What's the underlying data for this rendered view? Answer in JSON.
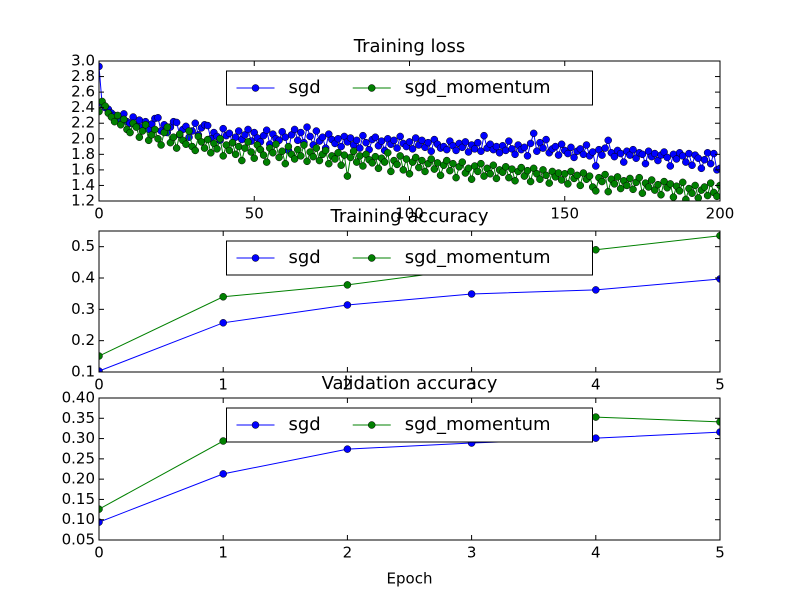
{
  "chart_data": [
    {
      "type": "line",
      "title": "Training loss",
      "legend": "upper center",
      "x": [
        0,
        1,
        2,
        3,
        4,
        5,
        6,
        7,
        8,
        9,
        10,
        11,
        12,
        13,
        14,
        15,
        16,
        17,
        18,
        19,
        20,
        21,
        22,
        23,
        24,
        25,
        26,
        27,
        28,
        29,
        30,
        31,
        32,
        33,
        34,
        35,
        36,
        37,
        38,
        39,
        40,
        41,
        42,
        43,
        44,
        45,
        46,
        47,
        48,
        49,
        50,
        51,
        52,
        53,
        54,
        55,
        56,
        57,
        58,
        59,
        60,
        61,
        62,
        63,
        64,
        65,
        66,
        67,
        68,
        69,
        70,
        71,
        72,
        73,
        74,
        75,
        76,
        77,
        78,
        79,
        80,
        81,
        82,
        83,
        84,
        85,
        86,
        87,
        88,
        89,
        90,
        91,
        92,
        93,
        94,
        95,
        96,
        97,
        98,
        99,
        100,
        101,
        102,
        103,
        104,
        105,
        106,
        107,
        108,
        109,
        110,
        111,
        112,
        113,
        114,
        115,
        116,
        117,
        118,
        119,
        120,
        121,
        122,
        123,
        124,
        125,
        126,
        127,
        128,
        129,
        130,
        131,
        132,
        133,
        134,
        135,
        136,
        137,
        138,
        139,
        140,
        141,
        142,
        143,
        144,
        145,
        146,
        147,
        148,
        149,
        150,
        151,
        152,
        153,
        154,
        155,
        156,
        157,
        158,
        159,
        160,
        161,
        162,
        163,
        164,
        165,
        166,
        167,
        168,
        169,
        170,
        171,
        172,
        173,
        174,
        175,
        176,
        177,
        178,
        179,
        180,
        181,
        182,
        183,
        184,
        185,
        186,
        187,
        188,
        189,
        190,
        191,
        192,
        193,
        194,
        195,
        196,
        197,
        198,
        199,
        200
      ],
      "series": [
        {
          "name": "sgd",
          "color": "#0000ff",
          "values": [
            2.93,
            2.45,
            2.4,
            2.38,
            2.33,
            2.3,
            2.28,
            2.25,
            2.32,
            2.22,
            2.2,
            2.28,
            2.18,
            2.24,
            2.15,
            2.22,
            2.12,
            2.19,
            2.26,
            2.27,
            2.1,
            2.18,
            2.08,
            2.15,
            2.22,
            2.21,
            2.05,
            2.12,
            2.16,
            2.02,
            2.1,
            2.2,
            2.05,
            2.14,
            2.18,
            2.17,
            2.0,
            2.08,
            2.03,
            1.98,
            2.13,
            2.04,
            2.07,
            1.95,
            2.02,
            2.1,
            1.99,
            2.05,
            2.12,
            1.97,
            2.08,
            2.01,
            1.96,
            2.04,
            2.11,
            1.93,
            2.06,
            2.0,
            1.98,
            2.09,
            2.02,
            1.85,
            2.05,
            2.12,
            1.98,
            2.08,
            1.95,
            2.15,
            2.03,
            1.92,
            2.1,
            1.97,
            2.02,
            1.88,
            2.06,
            1.99,
            1.94,
            2.0,
            1.9,
            2.03,
            1.96,
            2.01,
            1.92,
            1.98,
            1.88,
            2.04,
            1.95,
            1.86,
            1.99,
            2.02,
            1.91,
            1.97,
            1.85,
            2.0,
            1.93,
            1.98,
            1.88,
            2.03,
            1.94,
            1.9,
            1.96,
            1.87,
            2.01,
            1.92,
            1.98,
            1.89,
            1.95,
            1.84,
            1.99,
            1.93,
            1.88,
            1.9,
            1.86,
            1.97,
            1.91,
            1.85,
            1.94,
            1.89,
            1.96,
            1.83,
            1.92,
            1.87,
            1.95,
            1.84,
            2.04,
            1.88,
            1.93,
            1.86,
            1.9,
            1.82,
            1.91,
            1.85,
            1.97,
            1.87,
            1.8,
            1.92,
            1.86,
            1.89,
            1.78,
            1.94,
            2.07,
            1.84,
            1.95,
            1.88,
            1.99,
            1.82,
            1.87,
            1.9,
            1.79,
            1.93,
            1.85,
            1.81,
            1.89,
            1.76,
            1.84,
            1.87,
            1.8,
            1.92,
            1.78,
            1.83,
            1.65,
            1.86,
            1.79,
            1.88,
            1.98,
            1.82,
            1.77,
            1.85,
            1.81,
            1.7,
            1.84,
            1.79,
            1.86,
            1.75,
            1.82,
            1.8,
            1.68,
            1.84,
            1.77,
            1.81,
            1.72,
            1.79,
            1.83,
            1.76,
            1.65,
            1.8,
            1.74,
            1.82,
            1.78,
            1.7,
            1.81,
            1.66,
            1.79,
            1.75,
            1.62,
            1.73,
            1.82,
            1.68,
            1.81,
            1.6,
            1.62
          ]
        },
        {
          "name": "sgd_momentum",
          "color": "#008000",
          "values": [
            2.35,
            2.48,
            2.42,
            2.33,
            2.28,
            2.22,
            2.3,
            2.18,
            2.25,
            2.12,
            2.08,
            2.2,
            2.15,
            2.02,
            2.1,
            2.18,
            1.98,
            2.05,
            2.12,
            2.0,
            1.92,
            2.08,
            2.15,
            1.95,
            2.02,
            1.88,
            2.06,
            1.98,
            1.93,
            2.1,
            1.9,
            1.85,
            2.03,
            1.96,
            1.88,
            1.99,
            1.82,
            1.94,
            1.87,
            2.0,
            1.78,
            1.92,
            1.85,
            1.95,
            1.8,
            1.9,
            1.72,
            1.88,
            1.96,
            1.83,
            1.75,
            1.92,
            1.86,
            1.79,
            1.7,
            1.88,
            1.82,
            1.93,
            1.76,
            1.84,
            1.68,
            1.9,
            1.8,
            1.74,
            1.86,
            1.78,
            1.92,
            1.71,
            1.83,
            1.77,
            1.88,
            1.72,
            1.8,
            1.85,
            1.68,
            1.78,
            1.74,
            1.82,
            1.66,
            1.79,
            1.52,
            1.76,
            1.84,
            1.7,
            1.78,
            1.65,
            1.8,
            1.73,
            1.69,
            1.77,
            1.62,
            1.75,
            1.7,
            1.82,
            1.58,
            1.72,
            1.67,
            1.78,
            1.6,
            1.74,
            1.55,
            1.7,
            1.76,
            1.63,
            1.72,
            1.58,
            1.68,
            1.74,
            1.61,
            1.69,
            1.53,
            1.66,
            1.72,
            1.59,
            1.68,
            1.5,
            1.64,
            1.7,
            1.56,
            1.62,
            1.48,
            1.65,
            1.58,
            1.68,
            1.52,
            1.62,
            1.55,
            1.66,
            1.49,
            1.6,
            1.57,
            1.64,
            1.5,
            1.61,
            1.46,
            1.58,
            1.63,
            1.52,
            1.59,
            1.45,
            1.62,
            1.55,
            1.48,
            1.6,
            1.53,
            1.43,
            1.58,
            1.51,
            1.56,
            1.47,
            1.55,
            1.42,
            1.58,
            1.49,
            1.53,
            1.4,
            1.56,
            1.48,
            1.52,
            1.38,
            1.33,
            1.5,
            1.45,
            1.54,
            1.32,
            1.48,
            1.42,
            1.51,
            1.36,
            1.46,
            1.4,
            1.49,
            1.35,
            1.44,
            1.5,
            1.3,
            1.43,
            1.38,
            1.47,
            1.34,
            1.41,
            1.28,
            1.45,
            1.37,
            1.42,
            1.25,
            1.39,
            1.33,
            1.44,
            1.22,
            1.36,
            1.3,
            1.4,
            1.24,
            1.34,
            1.38,
            1.27,
            1.43,
            1.31,
            1.26,
            1.4
          ]
        }
      ],
      "xlim": [
        0,
        200
      ],
      "xticks": [
        0,
        50,
        100,
        150,
        200
      ],
      "ylim": [
        1.2,
        3.0
      ],
      "yticks": [
        1.2,
        1.4,
        1.6,
        1.8,
        {
          "value": 2.0,
          "label": "2.0"
        },
        2.2,
        2.4,
        2.6,
        2.8,
        {
          "value": 3.0,
          "label": "3.0"
        }
      ]
    },
    {
      "type": "line",
      "title": "Training accuracy",
      "legend": "upper center",
      "x": [
        0,
        1,
        2,
        3,
        4,
        5
      ],
      "series": [
        {
          "name": "sgd",
          "color": "#0000ff",
          "values": [
            0.103,
            0.257,
            0.314,
            0.349,
            0.362,
            0.397
          ]
        },
        {
          "name": "sgd_momentum",
          "color": "#008000",
          "values": [
            0.151,
            0.34,
            0.378,
            0.43,
            0.49,
            0.535
          ]
        }
      ],
      "xlim": [
        0,
        5
      ],
      "xticks": [
        0,
        1,
        2,
        3,
        4,
        5
      ],
      "ylim": [
        0.1,
        0.55
      ],
      "yticks": [
        0.1,
        0.2,
        0.3,
        0.4,
        0.5
      ]
    },
    {
      "type": "line",
      "title": "Validation accuracy",
      "xlabel": "Epoch",
      "legend": "upper center",
      "x": [
        0,
        1,
        2,
        3,
        4,
        5
      ],
      "series": [
        {
          "name": "sgd",
          "color": "#0000ff",
          "values": [
            0.094,
            0.213,
            0.274,
            0.289,
            0.301,
            0.316
          ]
        },
        {
          "name": "sgd_momentum",
          "color": "#008000",
          "values": [
            0.126,
            0.294,
            0.32,
            0.33,
            0.353,
            0.341
          ]
        }
      ],
      "xlim": [
        0,
        5
      ],
      "xticks": [
        0,
        1,
        2,
        3,
        4,
        5
      ],
      "ylim": [
        0.05,
        0.4
      ],
      "yticks": [
        0.05,
        {
          "value": 0.1,
          "label": "0.10"
        },
        0.15,
        {
          "value": 0.2,
          "label": "0.20"
        },
        0.25,
        {
          "value": 0.3,
          "label": "0.30"
        },
        0.35,
        {
          "value": 0.4,
          "label": "0.40"
        }
      ]
    }
  ]
}
